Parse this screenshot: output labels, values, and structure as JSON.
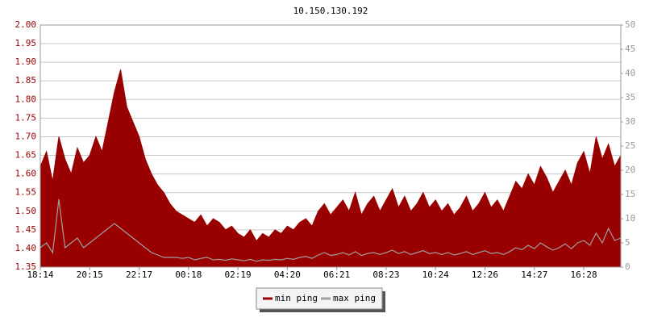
{
  "chart_data": {
    "type": "line",
    "title": "10.150.130.192",
    "categories": [
      "18:14",
      null,
      null,
      null,
      null,
      null,
      null,
      null,
      "20:15",
      null,
      null,
      null,
      null,
      null,
      null,
      null,
      "22:17",
      null,
      null,
      null,
      null,
      null,
      null,
      null,
      "00:18",
      null,
      null,
      null,
      null,
      null,
      null,
      null,
      "02:19",
      null,
      null,
      null,
      null,
      null,
      null,
      null,
      "04:20",
      null,
      null,
      null,
      null,
      null,
      null,
      null,
      "06:21",
      null,
      null,
      null,
      null,
      null,
      null,
      null,
      "08:23",
      null,
      null,
      null,
      null,
      null,
      null,
      null,
      "10:24",
      null,
      null,
      null,
      null,
      null,
      null,
      null,
      "12:26",
      null,
      null,
      null,
      null,
      null,
      null,
      null,
      "14:27",
      null,
      null,
      null,
      null,
      null,
      null,
      null,
      "16:28",
      null,
      null,
      null,
      null,
      null,
      null
    ],
    "series": [
      {
        "name": "min ping",
        "color": "#990000",
        "style": "area",
        "values": [
          1.62,
          1.66,
          1.58,
          1.7,
          1.64,
          1.6,
          1.67,
          1.63,
          1.65,
          1.7,
          1.66,
          1.74,
          1.82,
          1.88,
          1.78,
          1.74,
          1.7,
          1.64,
          1.6,
          1.57,
          1.55,
          1.52,
          1.5,
          1.49,
          1.48,
          1.47,
          1.49,
          1.46,
          1.48,
          1.47,
          1.45,
          1.46,
          1.44,
          1.43,
          1.45,
          1.42,
          1.44,
          1.43,
          1.45,
          1.44,
          1.46,
          1.45,
          1.47,
          1.48,
          1.46,
          1.5,
          1.52,
          1.49,
          1.51,
          1.53,
          1.5,
          1.55,
          1.49,
          1.52,
          1.54,
          1.5,
          1.53,
          1.56,
          1.51,
          1.54,
          1.5,
          1.52,
          1.55,
          1.51,
          1.53,
          1.5,
          1.52,
          1.49,
          1.51,
          1.54,
          1.5,
          1.52,
          1.55,
          1.51,
          1.53,
          1.5,
          1.54,
          1.58,
          1.56,
          1.6,
          1.57,
          1.62,
          1.59,
          1.55,
          1.58,
          1.61,
          1.57,
          1.63,
          1.66,
          1.6,
          1.7,
          1.64,
          1.68,
          1.62,
          1.65
        ]
      },
      {
        "name": "max ping",
        "color": "#a0a0a0",
        "style": "line",
        "axis": "y2",
        "values": [
          4,
          5,
          3,
          14,
          4,
          5,
          6,
          4,
          5,
          6,
          7,
          8,
          9,
          8,
          7,
          6,
          5,
          4,
          3,
          2.5,
          2,
          2,
          2,
          1.8,
          2,
          1.5,
          1.8,
          2,
          1.5,
          1.6,
          1.4,
          1.7,
          1.5,
          1.3,
          1.6,
          1.2,
          1.5,
          1.4,
          1.6,
          1.5,
          1.8,
          1.6,
          2,
          2.2,
          1.8,
          2.5,
          3,
          2.4,
          2.6,
          3,
          2.5,
          3.2,
          2.4,
          2.8,
          3,
          2.6,
          3,
          3.5,
          2.8,
          3.2,
          2.6,
          3,
          3.4,
          2.8,
          3,
          2.6,
          3,
          2.5,
          2.8,
          3.2,
          2.6,
          3,
          3.4,
          2.8,
          3,
          2.6,
          3.2,
          4,
          3.6,
          4.5,
          3.8,
          5,
          4.2,
          3.5,
          4,
          4.8,
          3.8,
          5,
          5.5,
          4.5,
          7,
          5,
          8,
          5.5,
          6
        ]
      }
    ],
    "ylim": [
      1.35,
      2.0
    ],
    "yticks": [
      1.35,
      {
        "value": 1.4,
        "label": "1.40"
      },
      1.45,
      {
        "value": 1.5,
        "label": "1.50"
      },
      1.55,
      {
        "value": 1.6,
        "label": "1.60"
      },
      1.65,
      {
        "value": 1.7,
        "label": "1.70"
      },
      1.75,
      {
        "value": 1.8,
        "label": "1.80"
      },
      1.85,
      {
        "value": 1.9,
        "label": "1.90"
      },
      1.95,
      {
        "value": 2,
        "label": "2.00"
      }
    ],
    "y2lim": [
      0,
      50
    ],
    "y2ticks": [
      0,
      5,
      10,
      15,
      20,
      25,
      30,
      35,
      40,
      45,
      50
    ],
    "grid": true,
    "legend": "bottom"
  }
}
